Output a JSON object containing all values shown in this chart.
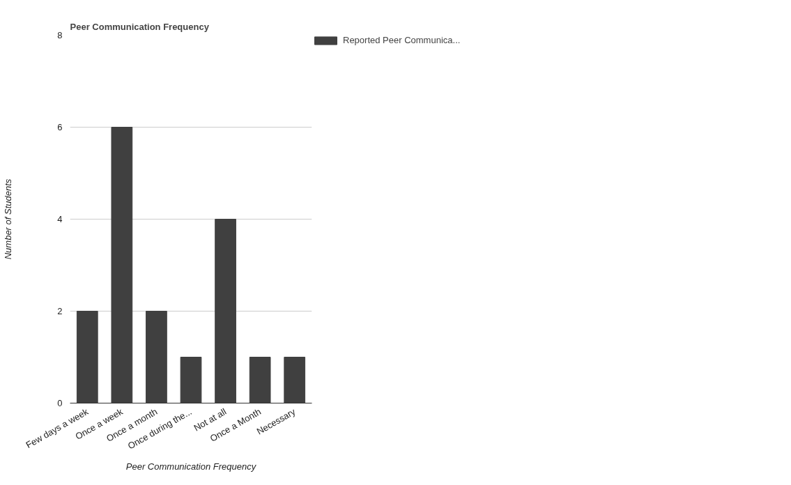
{
  "chart_data": {
    "type": "bar",
    "title": "Peer Communication Frequency",
    "xlabel": "Peer Communication Frequency",
    "ylabel": "Number of Students",
    "categories": [
      "Few days a week",
      "Once a week",
      "Once a month",
      "Once during the...",
      "Not at all",
      "Once a Month",
      "Necessary"
    ],
    "series": [
      {
        "name": "Reported Peer Communica...",
        "color": "#404040",
        "values": [
          2,
          6,
          2,
          1,
          4,
          1,
          1
        ]
      }
    ],
    "ylim": [
      0,
      8
    ],
    "yticks": [
      0,
      2,
      4,
      6,
      8
    ],
    "grid": "y",
    "legend": "top right"
  }
}
